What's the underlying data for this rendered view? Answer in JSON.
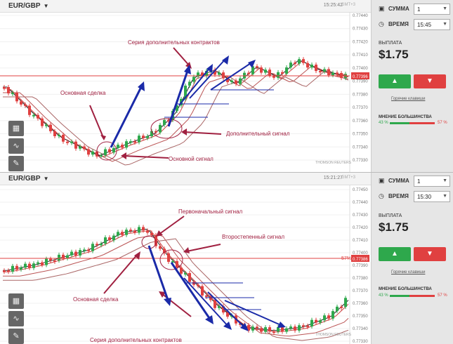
{
  "panel1": {
    "pair": "EUR/GBP",
    "time": "15:25:42",
    "gmt": "GMT+3",
    "price_ticks": [
      "0.77440",
      "0.77430",
      "0.77420",
      "0.77410",
      "0.77400",
      "0.77390",
      "0.77380",
      "0.77370",
      "0.77360",
      "0.77350",
      "0.77340",
      "0.77330"
    ],
    "current_price": "0.77396",
    "current_pct": "57%",
    "sum_label": "СУММА",
    "sum_value": "1",
    "time_label": "ВРЕМЯ",
    "time_value": "15:45",
    "payout_label": "ВЫПЛАТА",
    "payout_value": "$1.75",
    "hotkeys": "Горячие клавиши",
    "sentiment_label": "МНЕНИЕ БОЛЬШИНСТВА",
    "pct_up": "43 %",
    "pct_down": "57 %",
    "up_share": 0.43,
    "thomson": "THOMSON REUTERS",
    "annotations": {
      "series": "Серия дополнительных контрактов",
      "main_trade": "Основная сделка",
      "extra_signal": "Дополнительный сигнал",
      "main_signal": "Основной сигнал"
    }
  },
  "panel2": {
    "pair": "EUR/GBP",
    "time": "15:21:27",
    "gmt": "GMT+3",
    "price_ticks": [
      "0.77450",
      "0.77440",
      "0.77430",
      "0.77420",
      "0.77410",
      "0.77400",
      "0.77390",
      "0.77380",
      "0.77370",
      "0.77360",
      "0.77350",
      "0.77340",
      "0.77330"
    ],
    "current_price": "0.77386",
    "current_pct": "57%",
    "sum_label": "СУММА",
    "sum_value": "1",
    "time_label": "ВРЕМЯ",
    "time_value": "15:30",
    "payout_label": "ВЫПЛАТА",
    "payout_value": "$1.75",
    "hotkeys": "Горячие клавиши",
    "sentiment_label": "МНЕНИЕ БОЛЬШИНСТВА",
    "pct_up": "43 %",
    "pct_down": "57 %",
    "up_share": 0.43,
    "thomson": "THOMSON REUTERS",
    "annotations": {
      "initial_signal": "Первоначальный сигнал",
      "secondary_signal": "Второстепенный сигнал",
      "main_trade": "Основная сделка",
      "series": "Серия дополнительных контрактов"
    }
  },
  "colors": {
    "up": "#2ea84c",
    "down": "#e04040",
    "arrow": "#1a2aa8",
    "annotation": "#a02040",
    "ma": "#c44"
  }
}
